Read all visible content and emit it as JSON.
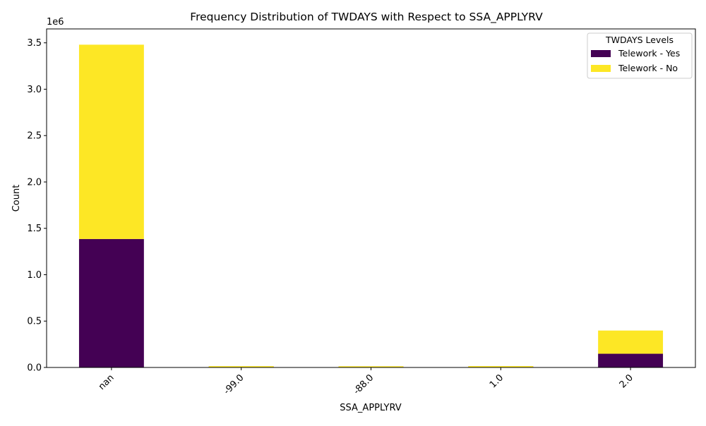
{
  "chart_data": {
    "type": "bar",
    "stacked": true,
    "title": "Frequency Distribution of TWDAYS with Respect to SSA_APPLYRV",
    "xlabel": "SSA_APPLYRV",
    "ylabel": "Count",
    "y_scale_label": "1e6",
    "categories": [
      "nan",
      "-99.0",
      "-88.0",
      "1.0",
      "2.0"
    ],
    "ylim": [
      0,
      3650000
    ],
    "yticks": [
      0.0,
      0.5,
      1.0,
      1.5,
      2.0,
      2.5,
      3.0,
      3.5
    ],
    "grid": false,
    "legend": {
      "title": "TWDAYS Levels",
      "placement": "top-right"
    },
    "series": [
      {
        "name": "Telework - Yes",
        "color": "#440154",
        "values": [
          1385000,
          3000,
          2000,
          3500,
          148000
        ]
      },
      {
        "name": "Telework - No",
        "color": "#fde725",
        "values": [
          2095000,
          4000,
          3000,
          11500,
          250000
        ]
      }
    ]
  }
}
